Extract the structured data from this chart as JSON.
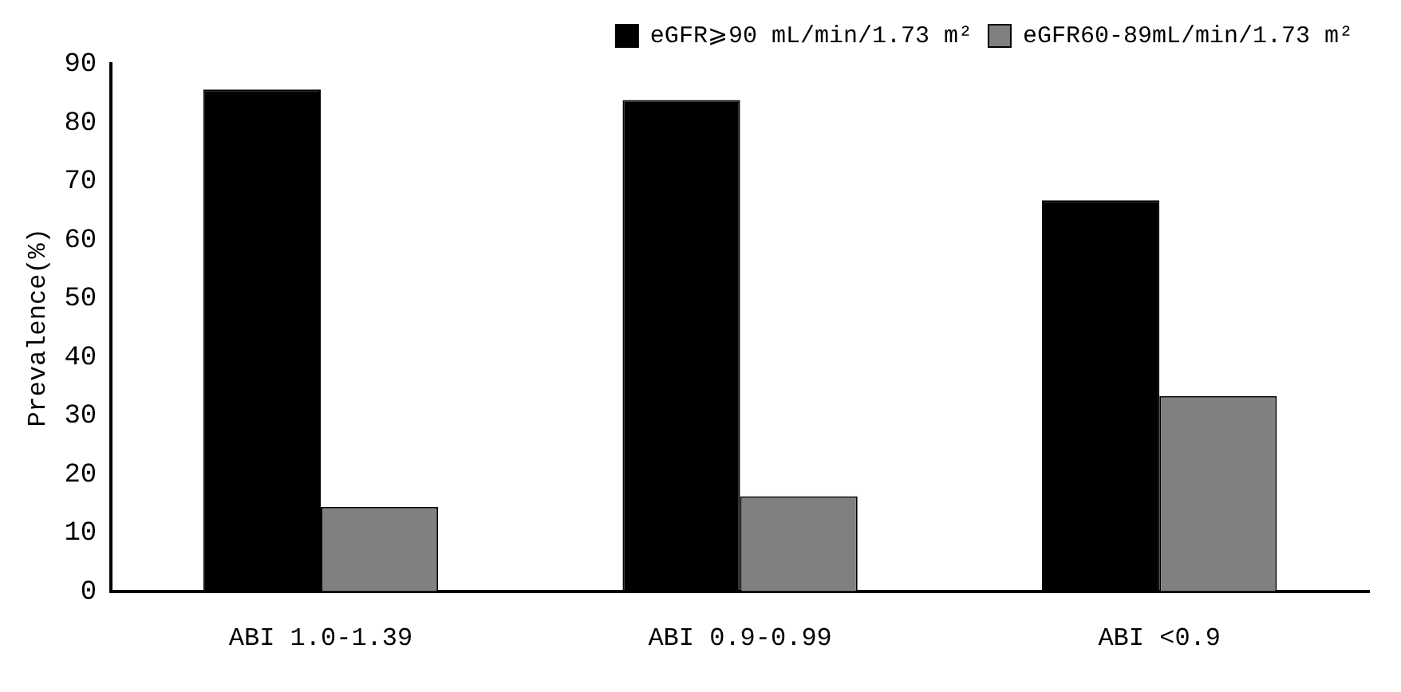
{
  "chart_data": {
    "type": "bar",
    "ylabel": "Prevalence(%)",
    "categories": [
      "ABI 1.0-1.39",
      "ABI 0.9-0.99",
      "ABI <0.9"
    ],
    "series": [
      {
        "name": "eGFR⩾90 mL/min/1.73 m²",
        "color": "#000000",
        "values": [
          85.6,
          83.8,
          66.7
        ]
      },
      {
        "name": "eGFR60-89mL/min/1.73 m²",
        "color": "#808080",
        "values": [
          14.4,
          16.2,
          33.3
        ]
      }
    ],
    "ylim": [
      0,
      90
    ],
    "yticks": [
      0,
      10,
      20,
      30,
      40,
      50,
      60,
      70,
      80,
      90
    ],
    "grid": false,
    "legend": "top right"
  }
}
